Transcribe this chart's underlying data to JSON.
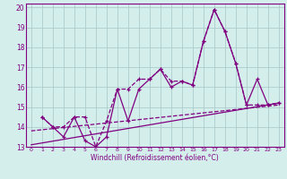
{
  "xlabel": "Windchill (Refroidissement éolien,°C)",
  "background_color": "#d4eeec",
  "line_color": "#800080",
  "grid_color": "#aecccc",
  "xlim": [
    -0.5,
    23.5
  ],
  "ylim": [
    13,
    20.2
  ],
  "xticks": [
    0,
    1,
    2,
    3,
    4,
    5,
    6,
    7,
    8,
    9,
    10,
    11,
    12,
    13,
    14,
    15,
    16,
    17,
    18,
    19,
    20,
    21,
    22,
    23
  ],
  "yticks": [
    13,
    14,
    15,
    16,
    17,
    18,
    19,
    20
  ],
  "line1_x": [
    1,
    2,
    3,
    4,
    5,
    6,
    7,
    8,
    9,
    10,
    11,
    12,
    13,
    14,
    15,
    16,
    17,
    18,
    19,
    20,
    21,
    22,
    23
  ],
  "line1_y": [
    14.5,
    14.0,
    13.5,
    14.5,
    13.3,
    13.0,
    13.5,
    15.9,
    14.3,
    15.9,
    16.4,
    16.9,
    16.0,
    16.3,
    16.1,
    18.3,
    19.9,
    18.8,
    17.2,
    15.1,
    16.4,
    15.1,
    15.2
  ],
  "line2_x": [
    1,
    2,
    3,
    4,
    5,
    6,
    7,
    8,
    9,
    10,
    11,
    12,
    13,
    14,
    15,
    16,
    17,
    18,
    19,
    20,
    21,
    22,
    23
  ],
  "line2_y": [
    14.5,
    14.0,
    14.0,
    14.5,
    14.5,
    13.0,
    14.3,
    15.9,
    15.9,
    16.4,
    16.4,
    16.9,
    16.3,
    16.3,
    16.1,
    18.3,
    19.9,
    18.8,
    17.2,
    15.1,
    15.1,
    15.1,
    15.2
  ],
  "trend1_x": [
    0,
    23
  ],
  "trend1_y": [
    13.1,
    15.2
  ],
  "trend2_x": [
    0,
    23
  ],
  "trend2_y": [
    13.8,
    15.1
  ]
}
